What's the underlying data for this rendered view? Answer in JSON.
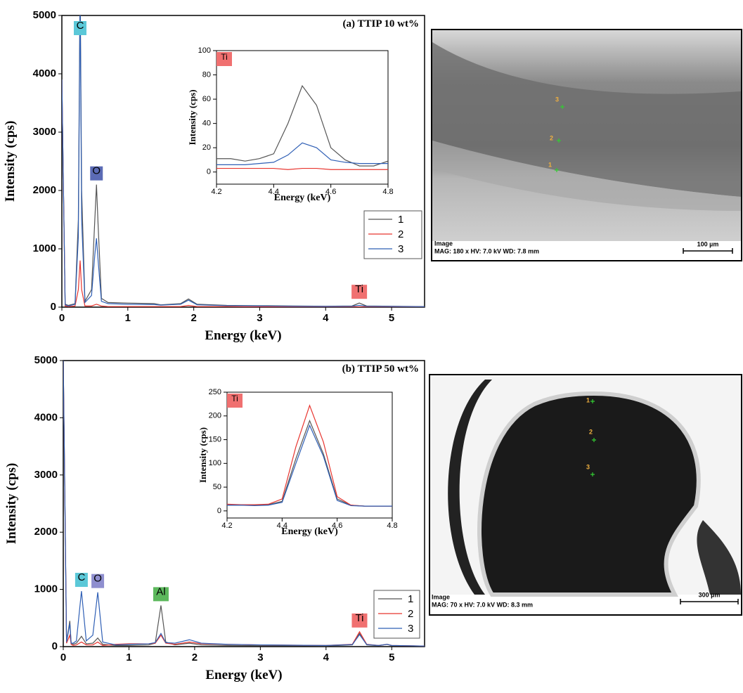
{
  "chart_data": [
    {
      "type": "line",
      "title": "(a) TTIP 10 wt%",
      "x_label": "Energy (keV)",
      "y_label": "Intensity (cps)",
      "x": [
        0,
        0.05,
        0.1,
        0.2,
        0.25,
        0.277,
        0.3,
        0.35,
        0.45,
        0.5,
        0.525,
        0.55,
        0.6,
        0.7,
        1.0,
        1.4,
        1.5,
        1.8,
        1.92,
        2.05,
        2.5,
        3.0,
        3.5,
        4.0,
        4.4,
        4.51,
        4.62,
        5.0,
        5.5
      ],
      "series": [
        {
          "name": "1",
          "color": "#555555",
          "values": [
            3900,
            50,
            30,
            60,
            1500,
            5600,
            2000,
            100,
            300,
            1500,
            2100,
            1400,
            150,
            80,
            70,
            60,
            40,
            60,
            140,
            50,
            30,
            25,
            20,
            15,
            20,
            70,
            20,
            15,
            10
          ]
        },
        {
          "name": "2",
          "color": "#e8352f",
          "values": [
            3900,
            20,
            10,
            20,
            300,
            800,
            300,
            20,
            20,
            40,
            50,
            40,
            20,
            10,
            10,
            10,
            10,
            10,
            30,
            10,
            10,
            5,
            5,
            5,
            5,
            5,
            5,
            5,
            5
          ]
        },
        {
          "name": "3",
          "color": "#2f5fb5",
          "values": [
            3900,
            40,
            20,
            50,
            1200,
            5400,
            1500,
            80,
            200,
            900,
            1180,
            800,
            100,
            60,
            50,
            45,
            35,
            50,
            120,
            40,
            25,
            20,
            15,
            12,
            15,
            30,
            15,
            12,
            8
          ]
        }
      ],
      "annotations": [
        {
          "text": "C",
          "x": 0.277,
          "color": "#5bc8d8"
        },
        {
          "text": "O",
          "x": 0.525,
          "color": "#5b6bb5"
        },
        {
          "text": "Ti",
          "x": 4.51,
          "color": "#f07070"
        }
      ],
      "xlim": [
        0,
        5.5
      ],
      "xticks": [
        0,
        1,
        2,
        3,
        4,
        5
      ],
      "ylim": [
        0,
        5000
      ],
      "yticks": [
        0,
        1000,
        2000,
        3000,
        4000,
        5000
      ],
      "legend": "lower right"
    },
    {
      "type": "line",
      "x_label": "Energy (keV)",
      "y_label": "Intensity (cps)",
      "x": [
        4.2,
        4.25,
        4.3,
        4.35,
        4.4,
        4.45,
        4.5,
        4.55,
        4.6,
        4.65,
        4.7,
        4.75,
        4.8
      ],
      "series": [
        {
          "name": "1",
          "color": "#555555",
          "values": [
            11,
            11,
            9,
            11,
            15,
            40,
            71,
            55,
            20,
            10,
            5,
            5,
            9
          ]
        },
        {
          "name": "2",
          "color": "#e8352f",
          "values": [
            3,
            3,
            3,
            3,
            3,
            2,
            3,
            3,
            2,
            2,
            2,
            2,
            2
          ]
        },
        {
          "name": "3",
          "color": "#2f5fb5",
          "values": [
            6,
            6,
            6,
            7,
            8,
            14,
            24,
            20,
            10,
            8,
            7,
            7,
            7
          ]
        }
      ],
      "annotations": [
        {
          "text": "Ti",
          "color": "#f07070"
        }
      ],
      "xlim": [
        4.2,
        4.8
      ],
      "xticks": [
        4.2,
        4.4,
        4.6,
        4.8
      ],
      "ylim": [
        -10,
        100
      ],
      "yticks": [
        0,
        20,
        40,
        60,
        80,
        100
      ]
    },
    {
      "type": "line",
      "title": "(b) TTIP 50 wt%",
      "x_label": "Energy (keV)",
      "y_label": "Intensity (cps)",
      "x": [
        0,
        0.05,
        0.1,
        0.12,
        0.15,
        0.2,
        0.277,
        0.35,
        0.45,
        0.525,
        0.6,
        0.8,
        1.0,
        1.3,
        1.4,
        1.487,
        1.56,
        1.7,
        1.92,
        2.1,
        2.5,
        3.0,
        3.5,
        4.0,
        4.4,
        4.51,
        4.62,
        4.8,
        4.93,
        5.0,
        5.5
      ],
      "series": [
        {
          "name": "1",
          "color": "#555555",
          "values": [
            5000,
            80,
            450,
            60,
            40,
            60,
            180,
            50,
            60,
            150,
            40,
            20,
            20,
            30,
            60,
            720,
            80,
            30,
            60,
            30,
            20,
            15,
            15,
            10,
            30,
            230,
            30,
            15,
            40,
            15,
            10
          ]
        },
        {
          "name": "2",
          "color": "#e8352f",
          "values": [
            5000,
            60,
            200,
            40,
            20,
            30,
            80,
            30,
            30,
            80,
            20,
            40,
            50,
            50,
            60,
            200,
            60,
            40,
            80,
            50,
            40,
            30,
            25,
            20,
            40,
            260,
            40,
            20,
            40,
            20,
            10
          ]
        },
        {
          "name": "3",
          "color": "#2f5fb5",
          "values": [
            5000,
            80,
            400,
            60,
            60,
            100,
            970,
            100,
            200,
            950,
            80,
            30,
            40,
            50,
            70,
            230,
            70,
            60,
            120,
            60,
            40,
            30,
            25,
            20,
            35,
            210,
            35,
            20,
            40,
            20,
            10
          ]
        }
      ],
      "annotations": [
        {
          "text": "C",
          "x": 0.277,
          "color": "#5bc8d8"
        },
        {
          "text": "O",
          "x": 0.525,
          "color": "#8f8fcf"
        },
        {
          "text": "Al",
          "x": 1.487,
          "color": "#5cb85c"
        },
        {
          "text": "Ti",
          "x": 4.51,
          "color": "#f07070"
        }
      ],
      "xlim": [
        0,
        5.5
      ],
      "xticks": [
        0,
        1,
        2,
        3,
        4,
        5
      ],
      "ylim": [
        0,
        5000
      ],
      "yticks": [
        0,
        1000,
        2000,
        3000,
        4000,
        5000
      ],
      "legend": "lower right"
    },
    {
      "type": "line",
      "x_label": "Energy (keV)",
      "y_label": "Intensity (cps)",
      "x": [
        4.2,
        4.25,
        4.3,
        4.35,
        4.4,
        4.45,
        4.5,
        4.55,
        4.6,
        4.65,
        4.7,
        4.75,
        4.8
      ],
      "series": [
        {
          "name": "1",
          "color": "#555555",
          "values": [
            12,
            12,
            12,
            13,
            20,
            110,
            190,
            120,
            25,
            12,
            10,
            10,
            10
          ]
        },
        {
          "name": "2",
          "color": "#e8352f",
          "values": [
            14,
            13,
            13,
            14,
            25,
            135,
            222,
            145,
            30,
            12,
            10,
            10,
            10
          ]
        },
        {
          "name": "3",
          "color": "#2f5fb5",
          "values": [
            12,
            12,
            11,
            12,
            18,
            100,
            180,
            115,
            22,
            11,
            10,
            10,
            10
          ]
        }
      ],
      "annotations": [
        {
          "text": "Ti",
          "color": "#f07070"
        }
      ],
      "xlim": [
        4.2,
        4.8
      ],
      "xticks": [
        4.2,
        4.4,
        4.6,
        4.8
      ],
      "ylim": [
        -15,
        250
      ],
      "yticks": [
        0,
        50,
        100,
        150,
        200,
        250
      ]
    }
  ],
  "micrographs": [
    {
      "caption": "Image",
      "info": "MAG: 180 x  HV: 7.0 kV  WD: 7.8 mm",
      "scale_bar": "100 µm",
      "points": [
        "3",
        "2",
        "1"
      ]
    },
    {
      "caption": "Image",
      "info": "MAG: 70 x  HV: 7.0 kV  WD: 8.3 mm",
      "scale_bar": "300 µm",
      "points": [
        "1",
        "2",
        "3"
      ]
    }
  ]
}
